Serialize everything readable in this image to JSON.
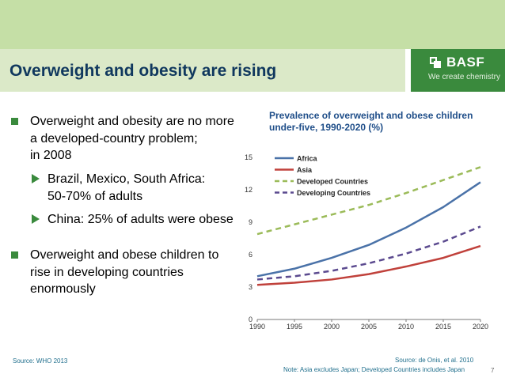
{
  "slide": {
    "title": "Overweight and obesity are rising",
    "logo_name": "BASF",
    "logo_tagline": "We create chemistry",
    "page_number": "7"
  },
  "bullets": [
    {
      "lines": [
        "Overweight and obesity are no more",
        "a developed-country problem;",
        "in 2008"
      ],
      "sub": [
        {
          "lines": [
            "Brazil, Mexico, South Africa:",
            "50-70% of adults"
          ]
        },
        {
          "lines": [
            "China: 25% of adults were obese"
          ]
        }
      ]
    },
    {
      "lines": [
        "Overweight and obese children to",
        "rise in developing countries",
        "enormously"
      ],
      "sub": []
    }
  ],
  "sources": {
    "left": "Source: WHO 2013",
    "right": "Source: de Onis, et al. 2010",
    "note": "Note: Asia excludes Japan; Developed Countries includes Japan"
  },
  "colors": {
    "africa": "#4a72a8",
    "asia": "#c0413b",
    "developed": "#9bbb59",
    "developing": "#5b4a8f"
  },
  "chart_data": {
    "type": "line",
    "title": "Prevalence of overweight and obese children under-five, 1990-2020 (%)",
    "x": [
      1990,
      1995,
      2000,
      2005,
      2010,
      2015,
      2020
    ],
    "xticks": [
      "1990",
      "1995",
      "2000",
      "2005",
      "2010",
      "2015",
      "2020"
    ],
    "yticks": [
      "0",
      "3",
      "6",
      "9",
      "12",
      "15"
    ],
    "ylim": [
      0,
      15
    ],
    "xlim": [
      1990,
      2020
    ],
    "legend_position": "top-left",
    "series": [
      {
        "name": "Africa",
        "style": "solid",
        "values": [
          4.0,
          4.7,
          5.7,
          6.9,
          8.5,
          10.4,
          12.7
        ]
      },
      {
        "name": "Asia",
        "style": "solid",
        "values": [
          3.2,
          3.4,
          3.7,
          4.2,
          4.9,
          5.7,
          6.8
        ]
      },
      {
        "name": "Developed Countries",
        "style": "dashed",
        "values": [
          7.9,
          8.8,
          9.7,
          10.6,
          11.7,
          12.9,
          14.1
        ]
      },
      {
        "name": "Developing Countries",
        "style": "dashed",
        "values": [
          3.7,
          4.0,
          4.5,
          5.2,
          6.1,
          7.2,
          8.6
        ]
      }
    ]
  }
}
